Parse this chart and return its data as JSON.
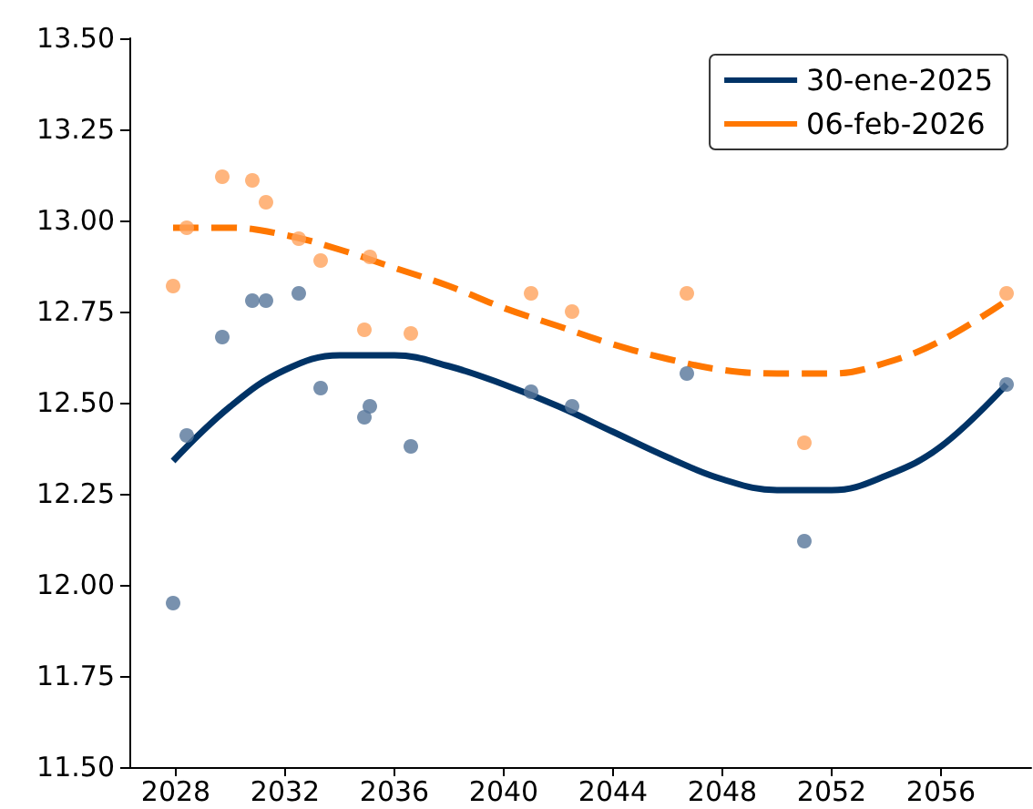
{
  "chart_data": {
    "type": "scatter",
    "xlim": [
      2026.3,
      2059.3
    ],
    "xticks": [
      2028,
      2032,
      2036,
      2040,
      2044,
      2048,
      2052,
      2056
    ],
    "ylim": [
      11.5,
      13.5
    ],
    "yticks": [
      {
        "value": 11.5,
        "label": "11.50"
      },
      {
        "value": 11.75,
        "label": "11.75"
      },
      {
        "value": 12,
        "label": "12.00"
      },
      {
        "value": 12.25,
        "label": "12.25"
      },
      {
        "value": 12.5,
        "label": "12.50"
      },
      {
        "value": 12.75,
        "label": "12.75"
      },
      {
        "value": 13,
        "label": "13.00"
      },
      {
        "value": 13.25,
        "label": "13.25"
      },
      {
        "value": 13.5,
        "label": "13.50"
      }
    ],
    "grid": false,
    "legend": "top right",
    "series": [
      {
        "marker": "circle",
        "color": "#56759a",
        "x": [
          2027.9,
          2028.4,
          2029.7,
          2030.8,
          2031.3,
          2032.5,
          2033.3,
          2034.9,
          2035.1,
          2036.6,
          2041.0,
          2042.5,
          2046.7,
          2051.0,
          2058.4
        ],
        "values": [
          11.95,
          12.41,
          12.68,
          12.78,
          12.78,
          12.8,
          12.54,
          12.46,
          12.49,
          12.38,
          12.53,
          12.49,
          12.58,
          12.12,
          12.55
        ]
      },
      {
        "marker": "circle",
        "color": "#ffa35c",
        "x": [
          2027.9,
          2028.4,
          2029.7,
          2030.8,
          2031.3,
          2032.5,
          2033.3,
          2034.9,
          2035.1,
          2036.6,
          2041.0,
          2042.5,
          2046.7,
          2051.0,
          2058.4
        ],
        "values": [
          12.82,
          12.98,
          13.12,
          13.11,
          13.05,
          12.95,
          12.89,
          12.7,
          12.9,
          12.69,
          12.8,
          12.75,
          12.8,
          12.39,
          12.8
        ]
      },
      {
        "type": "line",
        "name": "30-ene-2025",
        "marker": "none",
        "line_style": "solid",
        "color": "#003366",
        "x": [
          2027.9,
          2030,
          2032,
          2034,
          2036,
          2038,
          2040,
          2042,
          2044,
          2046,
          2048,
          2050,
          2052,
          2054,
          2056,
          2058.4
        ],
        "values": [
          12.34,
          12.49,
          12.59,
          12.63,
          12.63,
          12.6,
          12.55,
          12.49,
          12.42,
          12.35,
          12.29,
          12.26,
          12.26,
          12.3,
          12.38,
          12.55
        ]
      },
      {
        "type": "line",
        "name": "06-feb-2026",
        "marker": "none",
        "line_style": "dashed",
        "color": "#ff7700",
        "x": [
          2027.9,
          2030,
          2032,
          2034,
          2036,
          2038,
          2040,
          2042,
          2044,
          2046,
          2048,
          2050,
          2052,
          2054,
          2056,
          2058.4
        ],
        "values": [
          12.98,
          12.98,
          12.96,
          12.92,
          12.87,
          12.82,
          12.76,
          12.71,
          12.66,
          12.62,
          12.59,
          12.58,
          12.58,
          12.61,
          12.67,
          12.78
        ]
      }
    ]
  }
}
